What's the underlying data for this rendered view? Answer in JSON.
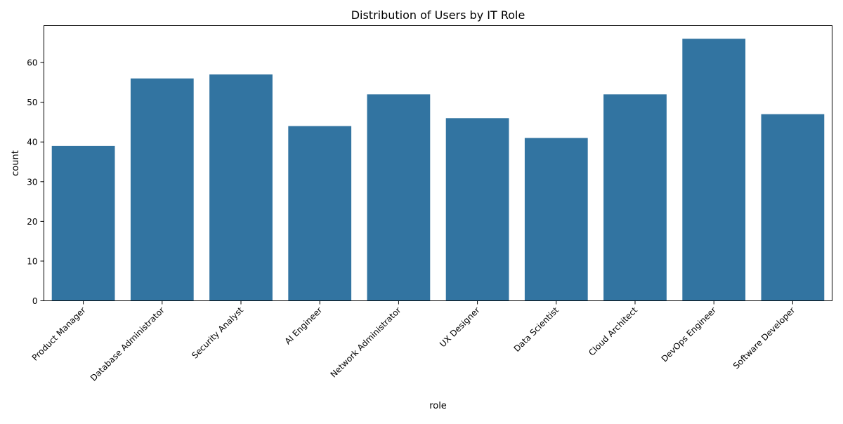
{
  "chart_data": {
    "type": "bar",
    "title": "Distribution of Users by IT Role",
    "xlabel": "role",
    "ylabel": "count",
    "categories": [
      "Product Manager",
      "Database Administrator",
      "Security Analyst",
      "AI Engineer",
      "Network Administrator",
      "UX Designer",
      "Data Scientist",
      "Cloud Architect",
      "DevOps Engineer",
      "Software Developer"
    ],
    "values": [
      39,
      56,
      57,
      44,
      52,
      46,
      41,
      52,
      66,
      47
    ],
    "ylim": [
      0,
      69.3
    ],
    "yticks": [
      0,
      10,
      20,
      30,
      40,
      50,
      60
    ],
    "grid": false,
    "legend": "none",
    "bar_color": "#3274a1"
  }
}
